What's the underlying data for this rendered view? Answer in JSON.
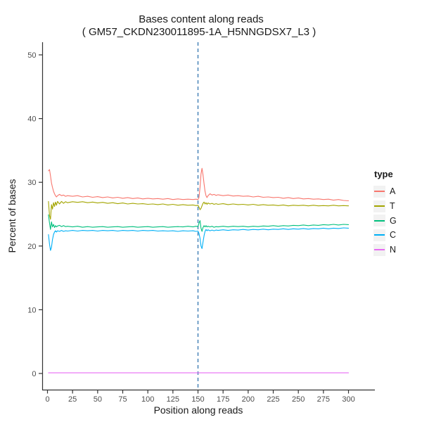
{
  "chart_data": {
    "type": "line",
    "title": "Bases content along reads",
    "subtitle": "( GM57_CKDN230011895-1A_H5NNGDSX7_L3 )",
    "xlabel": "Position along reads",
    "ylabel": "Percent of bases",
    "legend_title": "type",
    "legend_position": "right",
    "grid": false,
    "background": "#ffffff",
    "axis_text_color": "#4D4D4D",
    "axis_line_color": "#333333",
    "legend_key_fill": "#F2F2F2",
    "x_ticks": [
      0,
      25,
      50,
      75,
      100,
      125,
      150,
      175,
      200,
      225,
      250,
      275,
      300
    ],
    "y_ticks": [
      0,
      10,
      20,
      30,
      40,
      50
    ],
    "xlim": [
      -5,
      326
    ],
    "ylim": [
      -2.5,
      52
    ],
    "vline": {
      "x": 150,
      "style": "dashed",
      "color": "#4984B8"
    },
    "x": [
      1,
      2,
      3,
      4,
      5,
      6,
      7,
      8,
      9,
      10,
      12,
      14,
      16,
      18,
      20,
      25,
      30,
      35,
      40,
      45,
      50,
      55,
      60,
      65,
      70,
      75,
      80,
      85,
      90,
      95,
      100,
      105,
      110,
      115,
      120,
      125,
      130,
      135,
      140,
      145,
      148,
      150,
      151,
      152,
      153,
      154,
      155,
      156,
      157,
      158,
      159,
      160,
      162,
      164,
      166,
      168,
      170,
      175,
      180,
      185,
      190,
      195,
      200,
      205,
      210,
      215,
      220,
      225,
      230,
      235,
      240,
      245,
      250,
      255,
      260,
      265,
      270,
      275,
      280,
      285,
      290,
      295,
      300
    ],
    "series": [
      {
        "name": "A",
        "color": "#F8766D",
        "values": [
          31.8,
          32.0,
          31.0,
          29.9,
          29.2,
          28.6,
          28.2,
          27.9,
          27.7,
          27.9,
          28.1,
          27.9,
          28.0,
          27.8,
          27.9,
          27.8,
          27.9,
          27.7,
          27.8,
          27.65,
          27.75,
          27.6,
          27.7,
          27.55,
          27.65,
          27.5,
          27.6,
          27.45,
          27.55,
          27.4,
          27.5,
          27.4,
          27.45,
          27.35,
          27.45,
          27.3,
          27.4,
          27.3,
          27.35,
          27.3,
          27.35,
          27.3,
          27.6,
          29.2,
          31.3,
          32.2,
          31.2,
          29.8,
          28.6,
          27.9,
          27.6,
          27.9,
          28.2,
          28.0,
          28.1,
          27.95,
          28.05,
          27.9,
          28.0,
          27.85,
          27.9,
          27.8,
          27.85,
          27.7,
          27.8,
          27.65,
          27.7,
          27.6,
          27.65,
          27.5,
          27.6,
          27.45,
          27.55,
          27.4,
          27.45,
          27.35,
          27.4,
          27.3,
          27.35,
          27.2,
          27.3,
          27.15,
          27.1
        ]
      },
      {
        "name": "T",
        "color": "#A3A500",
        "values": [
          27.0,
          24.8,
          24.2,
          26.5,
          25.8,
          26.8,
          26.2,
          26.9,
          26.4,
          27.0,
          26.6,
          27.0,
          26.7,
          26.95,
          26.8,
          26.95,
          26.85,
          26.95,
          26.8,
          26.9,
          26.75,
          26.85,
          26.7,
          26.8,
          26.65,
          26.75,
          26.6,
          26.7,
          26.6,
          26.65,
          26.55,
          26.6,
          26.5,
          26.6,
          26.45,
          26.55,
          26.4,
          26.5,
          26.4,
          26.45,
          26.35,
          26.4,
          26.1,
          25.7,
          25.9,
          26.3,
          26.7,
          26.9,
          26.6,
          26.8,
          26.55,
          26.75,
          26.6,
          26.7,
          26.55,
          26.65,
          26.55,
          26.65,
          26.5,
          26.6,
          26.5,
          26.55,
          26.45,
          26.55,
          26.4,
          26.5,
          26.4,
          26.45,
          26.35,
          26.45,
          26.3,
          26.4,
          26.35,
          26.4,
          26.3,
          26.4,
          26.3,
          26.35,
          26.3,
          26.4,
          26.3,
          26.35,
          26.3
        ]
      },
      {
        "name": "G",
        "color": "#00BF7D",
        "values": [
          24.9,
          23.6,
          22.6,
          23.8,
          23.0,
          23.4,
          22.9,
          23.2,
          23.0,
          23.15,
          23.25,
          23.05,
          23.2,
          23.05,
          23.1,
          23.0,
          23.1,
          22.95,
          23.05,
          22.95,
          23.0,
          23.05,
          22.95,
          23.0,
          23.05,
          22.95,
          23.0,
          23.05,
          22.95,
          23.0,
          23.05,
          22.95,
          23.0,
          23.05,
          22.95,
          23.0,
          23.05,
          23.0,
          23.1,
          23.0,
          23.1,
          23.05,
          23.6,
          24.0,
          22.8,
          22.3,
          22.9,
          23.2,
          23.0,
          23.2,
          23.0,
          23.1,
          23.0,
          23.1,
          22.95,
          23.05,
          23.0,
          23.1,
          23.0,
          23.1,
          23.05,
          23.1,
          23.0,
          23.1,
          23.05,
          23.15,
          23.1,
          23.2,
          23.1,
          23.2,
          23.15,
          23.25,
          23.2,
          23.3,
          23.2,
          23.3,
          23.25,
          23.35,
          23.3,
          23.4,
          23.3,
          23.4,
          23.35
        ]
      },
      {
        "name": "C",
        "color": "#00B0F6",
        "values": [
          21.8,
          20.3,
          19.3,
          19.8,
          21.0,
          21.8,
          22.2,
          22.4,
          22.2,
          22.4,
          22.3,
          22.45,
          22.3,
          22.4,
          22.35,
          22.45,
          22.35,
          22.45,
          22.4,
          22.45,
          22.35,
          22.45,
          22.4,
          22.45,
          22.35,
          22.45,
          22.4,
          22.45,
          22.35,
          22.45,
          22.4,
          22.45,
          22.35,
          22.4,
          22.35,
          22.4,
          22.3,
          22.4,
          22.35,
          22.4,
          22.3,
          22.35,
          22.0,
          21.2,
          20.0,
          19.6,
          20.6,
          21.6,
          22.3,
          22.6,
          22.4,
          22.55,
          22.4,
          22.5,
          22.4,
          22.5,
          22.45,
          22.55,
          22.45,
          22.55,
          22.5,
          22.6,
          22.5,
          22.6,
          22.55,
          22.65,
          22.55,
          22.65,
          22.6,
          22.7,
          22.6,
          22.7,
          22.65,
          22.75,
          22.65,
          22.75,
          22.7,
          22.8,
          22.7,
          22.8,
          22.75,
          22.85,
          22.8
        ]
      },
      {
        "name": "N",
        "color": "#E76BF3",
        "values": [
          0.1,
          0.1,
          0.1,
          0.1,
          0.1,
          0.1,
          0.1,
          0.1,
          0.1,
          0.1,
          0.1,
          0.1,
          0.1,
          0.1,
          0.1,
          0.1,
          0.1,
          0.1,
          0.1,
          0.1,
          0.1,
          0.1,
          0.1,
          0.1,
          0.1,
          0.1,
          0.1,
          0.1,
          0.1,
          0.1,
          0.1,
          0.1,
          0.1,
          0.1,
          0.1,
          0.1,
          0.1,
          0.1,
          0.1,
          0.1,
          0.1,
          0.1,
          0.1,
          0.1,
          0.1,
          0.1,
          0.1,
          0.1,
          0.1,
          0.1,
          0.1,
          0.1,
          0.1,
          0.1,
          0.1,
          0.1,
          0.1,
          0.1,
          0.1,
          0.1,
          0.1,
          0.1,
          0.1,
          0.1,
          0.1,
          0.1,
          0.1,
          0.1,
          0.1,
          0.1,
          0.1,
          0.1,
          0.1,
          0.1,
          0.1,
          0.1,
          0.1,
          0.1,
          0.1,
          0.1,
          0.1,
          0.1,
          0.1
        ]
      }
    ]
  }
}
